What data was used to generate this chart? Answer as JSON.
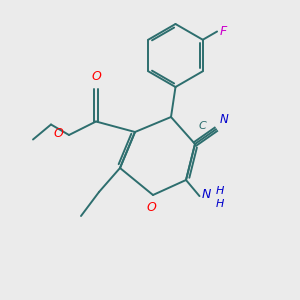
{
  "bg_color": "#ebebeb",
  "bond_color": "#2d6e6e",
  "O_color": "#ff0000",
  "N_color": "#0000cc",
  "F_color": "#cc00cc",
  "figsize": [
    3.0,
    3.0
  ],
  "dpi": 100,
  "xlim": [
    0,
    10
  ],
  "ylim": [
    0,
    10
  ]
}
